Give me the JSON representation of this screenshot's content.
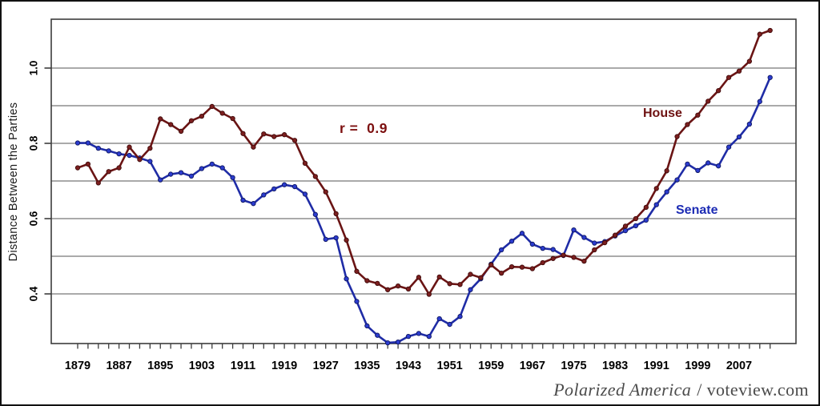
{
  "figure": {
    "footer": {
      "title": "Polarized America",
      "site": "/ voteview.com"
    }
  },
  "chart_data": {
    "type": "line",
    "title": "",
    "xlabel": "",
    "ylabel": "Distance Between the Parties",
    "xlim": [
      1874,
      2018
    ],
    "ylim": [
      0.268,
      1.13
    ],
    "grid": "horizontal",
    "legend": "inline-labels",
    "y_gridlines": [
      0.4,
      0.5,
      0.6,
      0.7,
      0.8,
      0.9,
      1.0
    ],
    "y_ticks": [
      0.4,
      0.6,
      0.8,
      1.0
    ],
    "y_tick_labels": [
      "0.4",
      "0.6",
      "0.8",
      "1.0"
    ],
    "x_tick_years": [
      1879,
      1887,
      1895,
      1903,
      1911,
      1919,
      1927,
      1935,
      1943,
      1951,
      1959,
      1967,
      1975,
      1983,
      1991,
      1999,
      2007
    ],
    "x": [
      1879,
      1881,
      1883,
      1885,
      1887,
      1889,
      1891,
      1893,
      1895,
      1897,
      1899,
      1901,
      1903,
      1905,
      1907,
      1909,
      1911,
      1913,
      1915,
      1917,
      1919,
      1921,
      1923,
      1925,
      1927,
      1929,
      1931,
      1933,
      1935,
      1937,
      1939,
      1941,
      1943,
      1945,
      1947,
      1949,
      1951,
      1953,
      1955,
      1957,
      1959,
      1961,
      1963,
      1965,
      1967,
      1969,
      1971,
      1973,
      1975,
      1977,
      1979,
      1981,
      1983,
      1985,
      1987,
      1989,
      1991,
      1993,
      1995,
      1997,
      1999,
      2001,
      2003,
      2005,
      2007,
      2009,
      2011,
      2013
    ],
    "series": [
      {
        "name": "House",
        "color": "#6a1414",
        "marker_color": "#7c1f1f",
        "marker_edge": "#3f0a0a",
        "values": [
          0.735,
          0.745,
          0.695,
          0.725,
          0.735,
          0.79,
          0.757,
          0.787,
          0.865,
          0.85,
          0.832,
          0.86,
          0.872,
          0.898,
          0.88,
          0.866,
          0.826,
          0.79,
          0.825,
          0.818,
          0.823,
          0.808,
          0.747,
          0.712,
          0.671,
          0.613,
          0.543,
          0.46,
          0.435,
          0.428,
          0.411,
          0.421,
          0.413,
          0.444,
          0.399,
          0.445,
          0.427,
          0.425,
          0.452,
          0.443,
          0.477,
          0.455,
          0.472,
          0.471,
          0.467,
          0.483,
          0.494,
          0.503,
          0.497,
          0.487,
          0.517,
          0.536,
          0.556,
          0.58,
          0.6,
          0.63,
          0.68,
          0.727,
          0.818,
          0.85,
          0.875,
          0.912,
          0.94,
          0.975,
          0.992,
          1.018,
          1.09,
          1.1
        ]
      },
      {
        "name": "Senate",
        "color": "#1f2ca6",
        "marker_color": "#2c3ccf",
        "marker_edge": "#0e1660",
        "values": [
          0.801,
          0.801,
          0.787,
          0.78,
          0.772,
          0.768,
          0.761,
          0.752,
          0.703,
          0.718,
          0.722,
          0.713,
          0.733,
          0.745,
          0.735,
          0.709,
          0.649,
          0.64,
          0.663,
          0.679,
          0.69,
          0.685,
          0.665,
          0.611,
          0.545,
          0.549,
          0.44,
          0.38,
          0.315,
          0.29,
          0.27,
          0.272,
          0.287,
          0.295,
          0.287,
          0.334,
          0.319,
          0.34,
          0.411,
          0.44,
          0.479,
          0.517,
          0.54,
          0.561,
          0.532,
          0.521,
          0.518,
          0.502,
          0.57,
          0.55,
          0.535,
          0.539,
          0.554,
          0.568,
          0.581,
          0.596,
          0.637,
          0.671,
          0.703,
          0.745,
          0.728,
          0.748,
          0.74,
          0.79,
          0.817,
          0.851,
          0.911,
          0.975
        ]
      }
    ],
    "annotations": {
      "r_label": {
        "text": "r =  0.9",
        "color": "#7c0f0f"
      },
      "house_label": {
        "text": "House",
        "color": "#6e1212"
      },
      "senate_label": {
        "text": "Senate",
        "color": "#1c2bb4"
      }
    }
  }
}
